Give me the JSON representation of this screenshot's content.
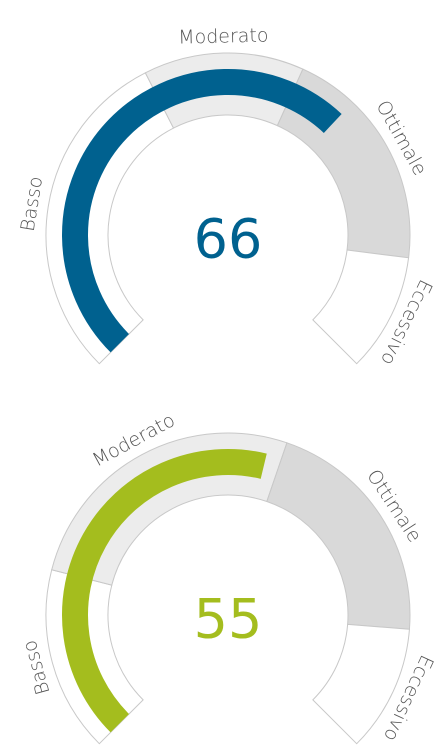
{
  "gauges": [
    {
      "value": 66,
      "min": 0,
      "max": 100,
      "color": "#00618f",
      "zones": [
        {
          "label": "Basso",
          "from": 0,
          "to": 40,
          "fill": "#ffffff"
        },
        {
          "label": "Moderato",
          "from": 40,
          "to": 59,
          "fill": "#ececec"
        },
        {
          "label": "Ottimale",
          "from": 59,
          "to": 86,
          "fill": "#d9d9d9"
        },
        {
          "label": "Eccessivo",
          "from": 86,
          "to": 100,
          "fill": "#ffffff"
        }
      ]
    },
    {
      "value": 55,
      "min": 0,
      "max": 100,
      "color": "#a4bd1e",
      "zones": [
        {
          "label": "Basso",
          "from": 0,
          "to": 22,
          "fill": "#ffffff"
        },
        {
          "label": "Moderato",
          "from": 22,
          "to": 57,
          "fill": "#ececec"
        },
        {
          "label": "Ottimale",
          "from": 57,
          "to": 85,
          "fill": "#d9d9d9"
        },
        {
          "label": "Eccessivo",
          "from": 85,
          "to": 100,
          "fill": "#ffffff"
        }
      ]
    }
  ]
}
